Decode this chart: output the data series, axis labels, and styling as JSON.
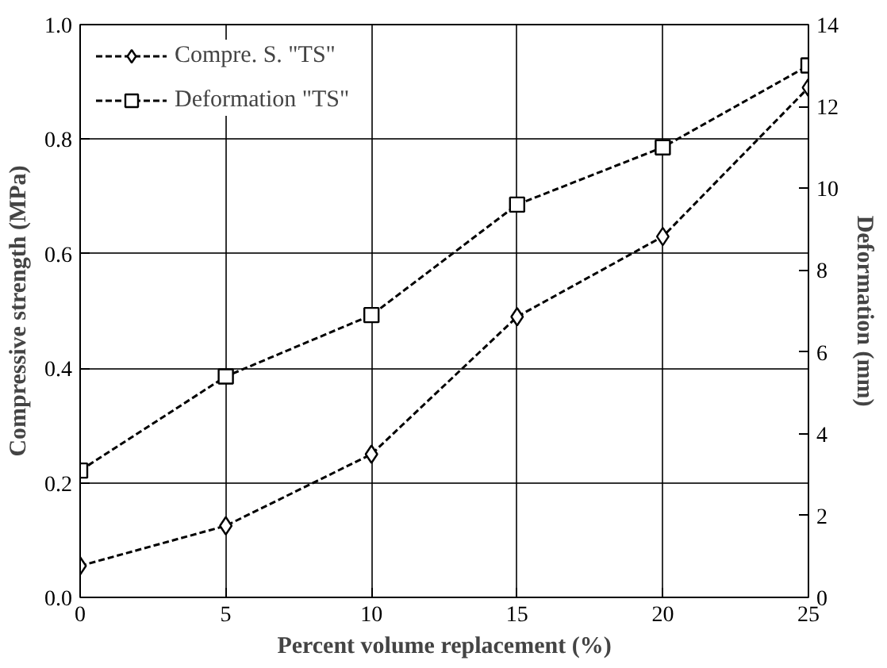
{
  "chart_data": {
    "type": "line",
    "xlabel": "Percent volume replacement (%)",
    "ylabel": "Compressive strength (MPa)",
    "y2label": "Deformation (mm)",
    "x": [
      0,
      5,
      10,
      15,
      20,
      25
    ],
    "series": [
      {
        "name": "Compre. S. \"TS\"",
        "color": "#000000",
        "marker": "diamond",
        "values": [
          0.055,
          0.125,
          0.25,
          0.49,
          0.63,
          0.89
        ]
      },
      {
        "name": "Deformation \"TS\"",
        "color": "#000000",
        "marker": "square",
        "axis": "y2",
        "values": [
          3.1,
          5.4,
          6.9,
          9.6,
          11.0,
          13.0
        ]
      }
    ],
    "xlim": [
      0,
      25
    ],
    "xticks": [
      0,
      5,
      10,
      15,
      20,
      25
    ],
    "ylim": [
      0,
      1
    ],
    "yticks": [
      {
        "value": 0,
        "label": "0.0"
      },
      0.2,
      0.4,
      0.6,
      0.8,
      {
        "value": 1,
        "label": "1.0"
      }
    ],
    "y2lim": [
      0,
      14
    ],
    "y2ticks": [
      0,
      2,
      4,
      6,
      8,
      10,
      12,
      14
    ],
    "grid": true,
    "legend": "top left",
    "line_style": "dashed"
  }
}
